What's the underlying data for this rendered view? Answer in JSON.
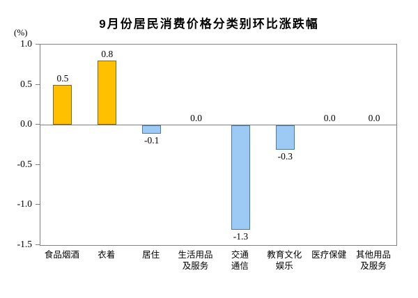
{
  "chart_data": {
    "type": "bar",
    "title": "9月份居民消费价格分类别环比涨跌幅",
    "unit_label": "(%)",
    "categories": [
      "食品烟酒",
      "衣着",
      "居住",
      "生活用品及服务",
      "交通通信",
      "教育文化娱乐",
      "医疗保健",
      "其他用品及服务"
    ],
    "category_lines": [
      [
        "食品烟酒"
      ],
      [
        "衣着"
      ],
      [
        "居住"
      ],
      [
        "生活用品",
        "及服务"
      ],
      [
        "交通",
        "通信"
      ],
      [
        "教育文化",
        "娱乐"
      ],
      [
        "医疗保健"
      ],
      [
        "其他用品",
        "及服务"
      ]
    ],
    "values": [
      0.5,
      0.8,
      -0.1,
      0.0,
      -1.3,
      -0.3,
      0.0,
      0.0
    ],
    "value_labels": [
      "0.5",
      "0.8",
      "-0.1",
      "0.0",
      "-1.3",
      "-0.3",
      "0.0",
      "0.0"
    ],
    "ylim": [
      -1.5,
      1.0
    ],
    "yticks": [
      1.0,
      0.5,
      0.0,
      -0.5,
      -1.0,
      -1.5
    ],
    "ytick_labels": [
      "1.0",
      "0.5",
      "0.0",
      "-0.5",
      "-1.0",
      "-1.5"
    ],
    "xlabel": "",
    "ylabel": "(%)",
    "grid": false,
    "legend": "none",
    "colors": {
      "positive_fill": "#FFC000",
      "positive_border": "#7F6A1D",
      "negative_fill": "#9DC9F5",
      "negative_border": "#54789C",
      "axis": "#808080",
      "text": "#000000"
    }
  }
}
